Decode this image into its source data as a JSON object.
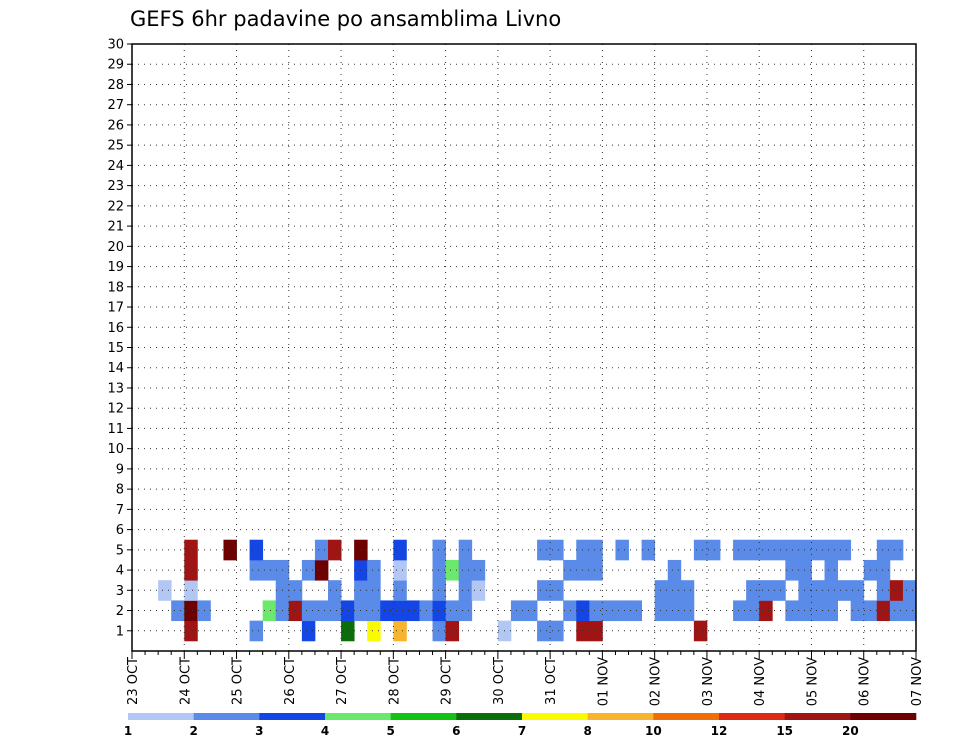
{
  "chart_data": {
    "type": "heatmap",
    "title": "GEFS 6hr padavine po ansamblima Livno",
    "xlabel": "",
    "ylabel": "",
    "x_ticks": [
      "23 OCT",
      "24 OCT",
      "25 OCT",
      "26 OCT",
      "27 OCT",
      "28 OCT",
      "29 OCT",
      "30 OCT",
      "31 OCT",
      "01 NOV",
      "02 NOV",
      "03 NOV",
      "04 NOV",
      "05 NOV",
      "06 NOV",
      "07 NOV"
    ],
    "x_range": [
      0,
      60
    ],
    "steps_per_day": 4,
    "y_ticks": [
      1,
      2,
      3,
      4,
      5,
      6,
      7,
      8,
      9,
      10,
      11,
      12,
      13,
      14,
      15,
      16,
      17,
      18,
      19,
      20,
      21,
      22,
      23,
      24,
      25,
      26,
      27,
      28,
      29,
      30
    ],
    "grid": "dotted",
    "legend": {
      "position": "bottom",
      "labels": [
        "1",
        "2",
        "3",
        "4",
        "5",
        "6",
        "7",
        "8",
        "10",
        "12",
        "15",
        "20"
      ],
      "colors": [
        "#b3c7f5",
        "#5a8be8",
        "#1446e6",
        "#6ce86c",
        "#14c214",
        "#0a6e0a",
        "#fafa00",
        "#f8b42c",
        "#f06e0a",
        "#dc2a14",
        "#a01414",
        "#6e0000"
      ]
    },
    "cells": [
      [
        1,
        4,
        10
      ],
      [
        1,
        9,
        1
      ],
      [
        1,
        13,
        2
      ],
      [
        1,
        16,
        5
      ],
      [
        1,
        18,
        6
      ],
      [
        1,
        20,
        7
      ],
      [
        1,
        23,
        1
      ],
      [
        1,
        24,
        10
      ],
      [
        1,
        28,
        0
      ],
      [
        1,
        31,
        1
      ],
      [
        1,
        32,
        1
      ],
      [
        1,
        34,
        10
      ],
      [
        1,
        35,
        10
      ],
      [
        1,
        43,
        10
      ],
      [
        2,
        3,
        1
      ],
      [
        2,
        4,
        11
      ],
      [
        2,
        5,
        1
      ],
      [
        2,
        10,
        3
      ],
      [
        2,
        11,
        1
      ],
      [
        2,
        12,
        10
      ],
      [
        2,
        13,
        1
      ],
      [
        2,
        14,
        1
      ],
      [
        2,
        15,
        1
      ],
      [
        2,
        16,
        2
      ],
      [
        2,
        17,
        1
      ],
      [
        2,
        18,
        1
      ],
      [
        2,
        19,
        2
      ],
      [
        2,
        20,
        2
      ],
      [
        2,
        21,
        2
      ],
      [
        2,
        22,
        1
      ],
      [
        2,
        23,
        2
      ],
      [
        2,
        24,
        1
      ],
      [
        2,
        25,
        1
      ],
      [
        2,
        29,
        1
      ],
      [
        2,
        30,
        1
      ],
      [
        2,
        33,
        1
      ],
      [
        2,
        34,
        2
      ],
      [
        2,
        35,
        1
      ],
      [
        2,
        36,
        1
      ],
      [
        2,
        37,
        1
      ],
      [
        2,
        38,
        1
      ],
      [
        2,
        40,
        1
      ],
      [
        2,
        41,
        1
      ],
      [
        2,
        42,
        1
      ],
      [
        2,
        46,
        1
      ],
      [
        2,
        47,
        1
      ],
      [
        2,
        48,
        10
      ],
      [
        2,
        50,
        1
      ],
      [
        2,
        51,
        1
      ],
      [
        2,
        52,
        1
      ],
      [
        2,
        53,
        1
      ],
      [
        2,
        55,
        1
      ],
      [
        2,
        56,
        1
      ],
      [
        2,
        57,
        10
      ],
      [
        2,
        58,
        1
      ],
      [
        2,
        59,
        1
      ],
      [
        3,
        2,
        0
      ],
      [
        3,
        4,
        0
      ],
      [
        3,
        11,
        1
      ],
      [
        3,
        12,
        1
      ],
      [
        3,
        15,
        1
      ],
      [
        3,
        17,
        1
      ],
      [
        3,
        18,
        1
      ],
      [
        3,
        20,
        1
      ],
      [
        3,
        23,
        1
      ],
      [
        3,
        25,
        1
      ],
      [
        3,
        26,
        0
      ],
      [
        3,
        31,
        1
      ],
      [
        3,
        32,
        1
      ],
      [
        3,
        40,
        1
      ],
      [
        3,
        41,
        1
      ],
      [
        3,
        42,
        1
      ],
      [
        3,
        47,
        1
      ],
      [
        3,
        48,
        1
      ],
      [
        3,
        49,
        1
      ],
      [
        3,
        51,
        1
      ],
      [
        3,
        52,
        1
      ],
      [
        3,
        53,
        1
      ],
      [
        3,
        54,
        1
      ],
      [
        3,
        55,
        1
      ],
      [
        3,
        57,
        1
      ],
      [
        3,
        58,
        10
      ],
      [
        3,
        59,
        1
      ],
      [
        4,
        4,
        10
      ],
      [
        4,
        9,
        1
      ],
      [
        4,
        10,
        1
      ],
      [
        4,
        11,
        1
      ],
      [
        4,
        13,
        1
      ],
      [
        4,
        14,
        11
      ],
      [
        4,
        17,
        2
      ],
      [
        4,
        18,
        1
      ],
      [
        4,
        20,
        0
      ],
      [
        4,
        23,
        1
      ],
      [
        4,
        24,
        3
      ],
      [
        4,
        25,
        1
      ],
      [
        4,
        26,
        1
      ],
      [
        4,
        33,
        1
      ],
      [
        4,
        34,
        1
      ],
      [
        4,
        35,
        1
      ],
      [
        4,
        41,
        1
      ],
      [
        4,
        50,
        1
      ],
      [
        4,
        51,
        1
      ],
      [
        4,
        53,
        1
      ],
      [
        4,
        56,
        1
      ],
      [
        4,
        57,
        1
      ],
      [
        5,
        4,
        10
      ],
      [
        5,
        7,
        11
      ],
      [
        5,
        9,
        2
      ],
      [
        5,
        14,
        1
      ],
      [
        5,
        15,
        10
      ],
      [
        5,
        17,
        11
      ],
      [
        5,
        20,
        2
      ],
      [
        5,
        23,
        1
      ],
      [
        5,
        25,
        1
      ],
      [
        5,
        31,
        1
      ],
      [
        5,
        32,
        1
      ],
      [
        5,
        34,
        1
      ],
      [
        5,
        35,
        1
      ],
      [
        5,
        37,
        1
      ],
      [
        5,
        39,
        1
      ],
      [
        5,
        43,
        1
      ],
      [
        5,
        44,
        1
      ],
      [
        5,
        46,
        1
      ],
      [
        5,
        47,
        1
      ],
      [
        5,
        48,
        1
      ],
      [
        5,
        49,
        1
      ],
      [
        5,
        50,
        1
      ],
      [
        5,
        51,
        1
      ],
      [
        5,
        52,
        1
      ],
      [
        5,
        53,
        1
      ],
      [
        5,
        54,
        1
      ],
      [
        5,
        57,
        1
      ],
      [
        5,
        58,
        1
      ]
    ]
  }
}
